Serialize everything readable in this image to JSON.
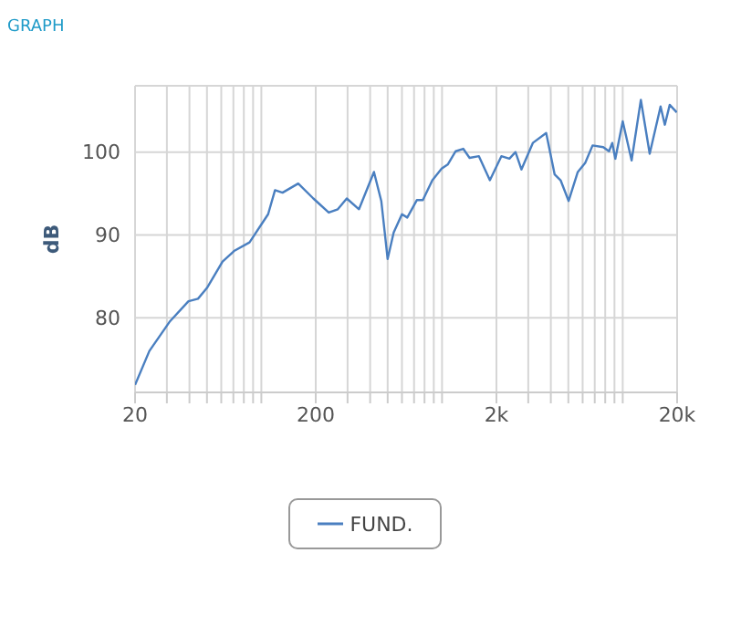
{
  "chart_data": {
    "type": "line",
    "title": "GRAPH",
    "ylabel": "dB",
    "log": "x",
    "grid": true,
    "legend": "bottom",
    "marker": "none",
    "line_style": "solid",
    "xlim": [
      20,
      20000
    ],
    "ylim": [
      71,
      108
    ],
    "xticks": [
      20,
      {
        "value": 30,
        "label": null
      },
      {
        "value": 40,
        "label": null
      },
      {
        "value": 50,
        "label": null
      },
      {
        "value": 60,
        "label": null
      },
      {
        "value": 70,
        "label": null
      },
      {
        "value": 80,
        "label": null
      },
      {
        "value": 90,
        "label": null
      },
      {
        "value": 100,
        "label": null
      },
      200,
      {
        "value": 300,
        "label": null
      },
      {
        "value": 400,
        "label": null
      },
      {
        "value": 500,
        "label": null
      },
      {
        "value": 600,
        "label": null
      },
      {
        "value": 700,
        "label": null
      },
      {
        "value": 800,
        "label": null
      },
      {
        "value": 900,
        "label": null
      },
      {
        "value": 1000,
        "label": null
      },
      {
        "value": 2000,
        "label": "2k"
      },
      {
        "value": 3000,
        "label": null
      },
      {
        "value": 4000,
        "label": null
      },
      {
        "value": 5000,
        "label": null
      },
      {
        "value": 6000,
        "label": null
      },
      {
        "value": 7000,
        "label": null
      },
      {
        "value": 8000,
        "label": null
      },
      {
        "value": 9000,
        "label": null
      },
      {
        "value": 10000,
        "label": null
      },
      {
        "value": 20000,
        "label": "20k"
      }
    ],
    "yticks": [
      80,
      90,
      100
    ],
    "series": [
      {
        "name": "FUND.",
        "color": "#4a7fc0",
        "x": [
          20,
          24,
          31,
          39.5,
          44.6,
          50,
          61,
          71,
          86,
          109,
          119,
          131,
          160,
          194,
          236,
          265,
          297,
          347,
          420,
          461,
          500,
          540,
          600,
          642,
          725,
          783,
          884,
          995,
          1075,
          1190,
          1310,
          1420,
          1600,
          1840,
          2130,
          2360,
          2550,
          2750,
          3180,
          3770,
          4200,
          4530,
          5020,
          5640,
          6200,
          6810,
          7800,
          8400,
          8750,
          9100,
          10000,
          11200,
          12600,
          14100,
          16200,
          17100,
          18200,
          19900
        ],
        "values": [
          71.9,
          76.0,
          79.5,
          82.0,
          82.3,
          83.6,
          86.8,
          88.1,
          89.1,
          92.5,
          95.4,
          95.1,
          96.2,
          94.4,
          92.7,
          93.1,
          94.4,
          93.1,
          97.6,
          94.1,
          87.1,
          90.3,
          92.5,
          92.1,
          94.2,
          94.2,
          96.6,
          98.0,
          98.5,
          100.1,
          100.4,
          99.3,
          99.5,
          96.6,
          99.5,
          99.2,
          100.0,
          97.9,
          101.1,
          102.3,
          97.3,
          96.6,
          94.1,
          97.6,
          98.7,
          100.8,
          100.6,
          100.1,
          101.1,
          99.2,
          103.7,
          99.0,
          106.3,
          99.8,
          105.5,
          103.3,
          105.7,
          104.8
        ]
      }
    ]
  }
}
